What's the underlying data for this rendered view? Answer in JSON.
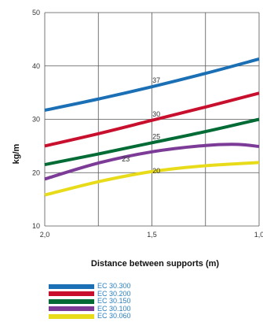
{
  "chart_data": {
    "type": "line",
    "xlabel": "Distance between supports (m)",
    "ylabel": "kg/m",
    "x_ticks": [
      "2,0",
      "1,5",
      "1,0"
    ],
    "xlim": [
      2.0,
      1.0
    ],
    "y_ticks": [
      "10",
      "20",
      "30",
      "40",
      "50"
    ],
    "ylim": [
      10,
      50
    ],
    "grid": true,
    "legend_position": "bottom",
    "series": [
      {
        "name": "EC 30.300",
        "color": "#1a6fb5",
        "label": "37",
        "x": [
          2.0,
          1.75,
          1.5,
          1.25,
          1.0
        ],
        "y": [
          31.7,
          33.8,
          36.1,
          38.6,
          41.3
        ]
      },
      {
        "name": "EC 30.200",
        "color": "#c8102e",
        "label": "30",
        "x": [
          2.0,
          1.75,
          1.5,
          1.25,
          1.0
        ],
        "y": [
          25.0,
          27.3,
          29.8,
          32.3,
          34.9
        ]
      },
      {
        "name": "EC 30.150",
        "color": "#006b35",
        "label": "25",
        "x": [
          2.0,
          1.75,
          1.5,
          1.25,
          1.0
        ],
        "y": [
          21.5,
          23.5,
          25.6,
          27.7,
          30.0
        ]
      },
      {
        "name": "EC 30.100",
        "color": "#7b3b96",
        "label": "23",
        "x": [
          2.0,
          1.75,
          1.5,
          1.25,
          1.1,
          1.0
        ],
        "y": [
          18.8,
          21.8,
          23.9,
          25.1,
          25.3,
          24.9
        ]
      },
      {
        "name": "EC 30.060",
        "color": "#e8dc1a",
        "label": "20",
        "x": [
          2.0,
          1.75,
          1.5,
          1.25,
          1.0
        ],
        "y": [
          15.8,
          18.3,
          20.2,
          21.3,
          21.9
        ]
      }
    ]
  }
}
